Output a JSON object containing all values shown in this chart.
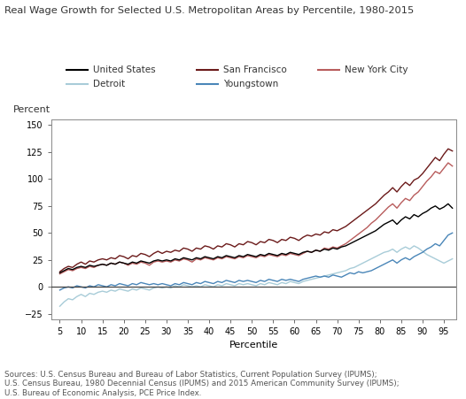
{
  "title": "Real Wage Growth for Selected U.S. Metropolitan Areas by Percentile, 1980-2015",
  "xlabel": "Percentile",
  "ylabel": "Percent",
  "xlim": [
    3,
    98
  ],
  "ylim": [
    -30,
    155
  ],
  "yticks": [
    -25,
    0,
    25,
    50,
    75,
    100,
    125,
    150
  ],
  "xticks": [
    5,
    10,
    15,
    20,
    25,
    30,
    35,
    40,
    45,
    50,
    55,
    60,
    65,
    70,
    75,
    80,
    85,
    90,
    95
  ],
  "source_text": "Sources: U.S. Census Bureau and Bureau of Labor Statistics, Current Population Survey (IPUMS);\nU.S. Census Bureau, 1980 Decennial Census (IPUMS) and 2015 American Community Survey (IPUMS);\nU.S. Bureau of Economic Analysis, PCE Price Index.",
  "colors": {
    "united_states": "#000000",
    "san_francisco": "#6b1a1a",
    "new_york_city": "#b85c5c",
    "detroit": "#a8ccd8",
    "youngstown": "#4a86b8"
  },
  "background_color": "#ffffff",
  "percentiles": [
    5,
    6,
    7,
    8,
    9,
    10,
    11,
    12,
    13,
    14,
    15,
    16,
    17,
    18,
    19,
    20,
    21,
    22,
    23,
    24,
    25,
    26,
    27,
    28,
    29,
    30,
    31,
    32,
    33,
    34,
    35,
    36,
    37,
    38,
    39,
    40,
    41,
    42,
    43,
    44,
    45,
    46,
    47,
    48,
    49,
    50,
    51,
    52,
    53,
    54,
    55,
    56,
    57,
    58,
    59,
    60,
    61,
    62,
    63,
    64,
    65,
    66,
    67,
    68,
    69,
    70,
    71,
    72,
    73,
    74,
    75,
    76,
    77,
    78,
    79,
    80,
    81,
    82,
    83,
    84,
    85,
    86,
    87,
    88,
    89,
    90,
    91,
    92,
    93,
    94,
    95,
    96,
    97
  ],
  "united_states": [
    13,
    15,
    17,
    16,
    18,
    19,
    18,
    20,
    19,
    20,
    21,
    20,
    22,
    21,
    23,
    22,
    21,
    23,
    22,
    24,
    23,
    22,
    24,
    25,
    24,
    25,
    24,
    26,
    25,
    27,
    26,
    25,
    27,
    26,
    28,
    27,
    26,
    28,
    27,
    29,
    28,
    27,
    29,
    28,
    30,
    29,
    28,
    30,
    29,
    31,
    30,
    29,
    31,
    30,
    32,
    31,
    30,
    32,
    33,
    32,
    34,
    33,
    35,
    34,
    36,
    35,
    37,
    38,
    40,
    42,
    44,
    46,
    48,
    50,
    52,
    55,
    58,
    60,
    62,
    58,
    62,
    65,
    63,
    67,
    65,
    68,
    70,
    73,
    75,
    72,
    74,
    77,
    73
  ],
  "san_francisco": [
    14,
    17,
    19,
    18,
    21,
    23,
    21,
    24,
    23,
    25,
    26,
    25,
    27,
    26,
    29,
    28,
    26,
    29,
    28,
    31,
    30,
    28,
    31,
    33,
    31,
    33,
    32,
    34,
    33,
    36,
    35,
    33,
    36,
    35,
    38,
    37,
    35,
    38,
    37,
    40,
    39,
    37,
    40,
    39,
    42,
    41,
    39,
    42,
    41,
    44,
    43,
    41,
    44,
    43,
    46,
    45,
    43,
    46,
    48,
    47,
    49,
    48,
    51,
    50,
    53,
    52,
    54,
    56,
    59,
    62,
    65,
    68,
    71,
    74,
    77,
    81,
    85,
    88,
    92,
    88,
    93,
    97,
    94,
    99,
    101,
    105,
    110,
    115,
    120,
    117,
    123,
    128,
    126
  ],
  "new_york_city": [
    12,
    14,
    16,
    15,
    17,
    18,
    17,
    19,
    18,
    20,
    21,
    20,
    22,
    21,
    23,
    22,
    20,
    22,
    21,
    23,
    22,
    20,
    23,
    24,
    23,
    24,
    23,
    25,
    24,
    26,
    25,
    23,
    26,
    25,
    27,
    26,
    25,
    27,
    26,
    28,
    27,
    26,
    28,
    27,
    29,
    28,
    27,
    29,
    28,
    30,
    29,
    28,
    30,
    29,
    31,
    30,
    29,
    31,
    33,
    32,
    34,
    33,
    36,
    35,
    37,
    36,
    38,
    40,
    43,
    46,
    49,
    52,
    55,
    59,
    62,
    66,
    70,
    74,
    77,
    73,
    78,
    82,
    80,
    85,
    88,
    93,
    98,
    102,
    107,
    105,
    110,
    115,
    112
  ],
  "detroit": [
    -18,
    -14,
    -11,
    -12,
    -9,
    -7,
    -9,
    -6,
    -7,
    -5,
    -4,
    -5,
    -3,
    -4,
    -2,
    -3,
    -4,
    -2,
    -3,
    -1,
    -2,
    -3,
    -1,
    0,
    -1,
    0,
    -1,
    1,
    0,
    2,
    1,
    0,
    1,
    0,
    2,
    1,
    0,
    2,
    1,
    3,
    2,
    1,
    3,
    2,
    3,
    2,
    1,
    3,
    2,
    4,
    3,
    2,
    4,
    3,
    5,
    4,
    3,
    5,
    6,
    7,
    8,
    9,
    10,
    11,
    12,
    13,
    14,
    15,
    17,
    18,
    20,
    22,
    24,
    26,
    28,
    30,
    32,
    33,
    35,
    32,
    35,
    37,
    35,
    38,
    36,
    33,
    30,
    28,
    26,
    24,
    22,
    24,
    26
  ],
  "youngstown": [
    -3,
    -1,
    0,
    -1,
    1,
    0,
    -1,
    1,
    0,
    2,
    1,
    0,
    2,
    1,
    3,
    2,
    1,
    3,
    2,
    4,
    3,
    2,
    3,
    2,
    3,
    2,
    1,
    3,
    2,
    4,
    3,
    2,
    4,
    3,
    5,
    4,
    3,
    5,
    4,
    6,
    5,
    4,
    6,
    5,
    6,
    5,
    4,
    6,
    5,
    7,
    6,
    5,
    7,
    6,
    7,
    6,
    5,
    7,
    8,
    9,
    10,
    9,
    10,
    9,
    11,
    10,
    9,
    11,
    13,
    12,
    14,
    13,
    14,
    15,
    17,
    19,
    21,
    23,
    25,
    22,
    25,
    27,
    25,
    28,
    30,
    32,
    35,
    37,
    40,
    38,
    43,
    48,
    50
  ]
}
